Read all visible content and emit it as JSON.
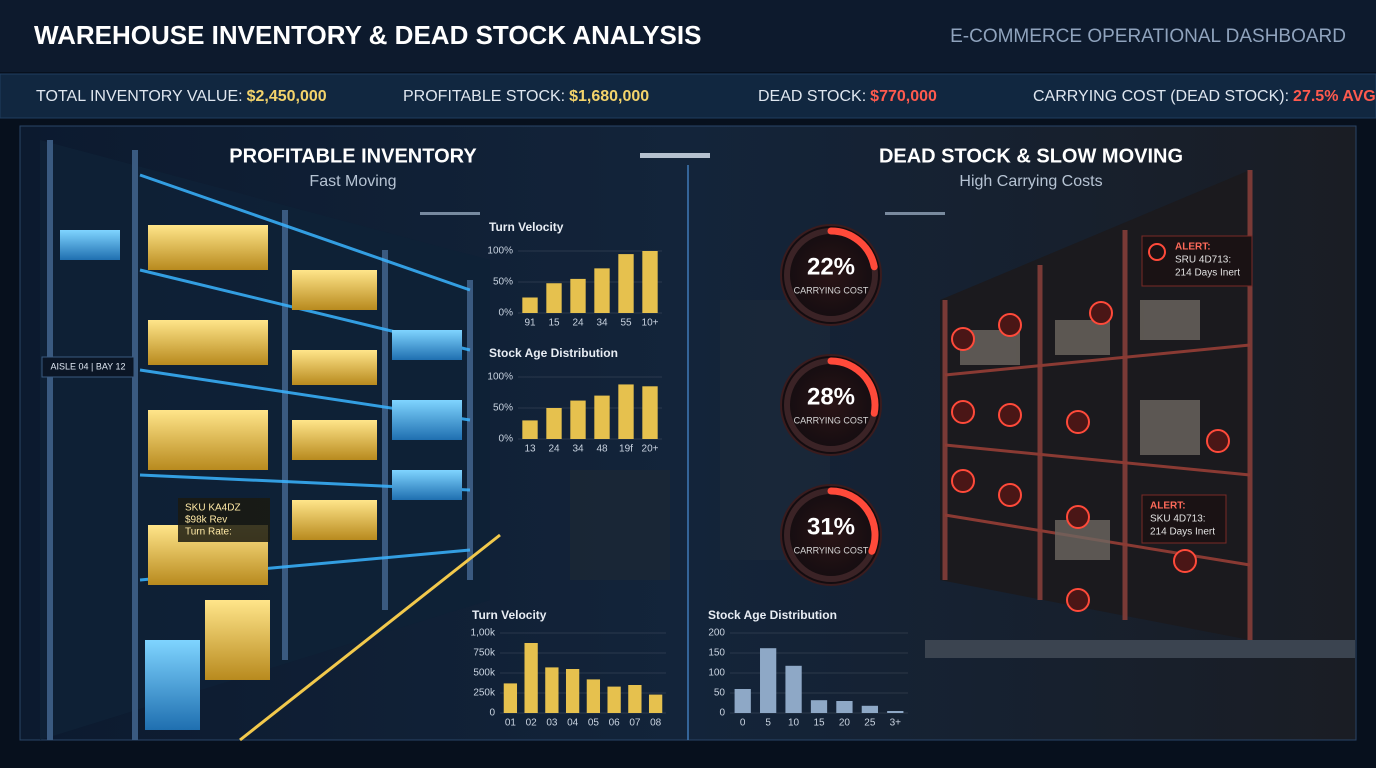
{
  "header": {
    "title": "WAREHOUSE INVENTORY & DEAD STOCK ANALYSIS",
    "subtitle": "E-COMMERCE OPERATIONAL DASHBOARD"
  },
  "kpis": [
    {
      "label": "TOTAL INVENTORY VALUE:",
      "value": "$2,450,000"
    },
    {
      "label": "PROFITABLE STOCK:",
      "value": "$1,680,000"
    },
    {
      "label": "DEAD STOCK:",
      "value": "$770,000"
    },
    {
      "label": "CARRYING COST (DEAD STOCK):",
      "value": "27.5% AVG"
    }
  ],
  "panels": [
    {
      "title": "PROFITABLE INVENTORY",
      "subtitle": "Fast Moving"
    },
    {
      "title": "DEAD STOCK & SLOW MOVING",
      "subtitle": "High Carrying Costs"
    }
  ],
  "shelf_labels": {
    "aisle": "AISLE 04 | BAY 12",
    "sku": "SKU KA4DZ",
    "revenue": "$98k Rev",
    "turn": "Turn Rate:"
  },
  "alerts": [
    {
      "title": "ALERT:",
      "sku": "SRU 4D713:",
      "detail": "214 Days Inert"
    },
    {
      "title": "ALERT:",
      "sku": "SKU 4D713:",
      "detail": "214 Days Inert"
    }
  ],
  "gauges": {
    "values": [
      22,
      28,
      31
    ],
    "value_labels": [
      "22%",
      "28%",
      "31%"
    ],
    "label": "CARRYING COST",
    "color": "#ff4a3a"
  },
  "chart_data": [
    {
      "type": "bar",
      "title": "Turn Velocity",
      "categories": [
        "91",
        "15",
        "24",
        "34",
        "55",
        "10+"
      ],
      "values": [
        25,
        48,
        55,
        72,
        95,
        100
      ],
      "color": "#e6c14e",
      "ylim": [
        0,
        100
      ],
      "yticks": [
        {
          "value": 0,
          "label": "0%"
        },
        {
          "value": 50,
          "label": "50%"
        },
        {
          "value": 100,
          "label": "100%"
        }
      ]
    },
    {
      "type": "bar",
      "title": "Stock Age Distribution",
      "categories": [
        "13",
        "24",
        "34",
        "48",
        "19f",
        "20+"
      ],
      "values": [
        30,
        50,
        62,
        70,
        88,
        85
      ],
      "color": "#e6c14e",
      "ylim": [
        0,
        100
      ],
      "yticks": [
        {
          "value": 0,
          "label": "0%"
        },
        {
          "value": 50,
          "label": "50%"
        },
        {
          "value": 100,
          "label": "100%"
        }
      ]
    },
    {
      "type": "bar",
      "title": "Turn Velocity",
      "categories": [
        "01",
        "02",
        "03",
        "04",
        "05",
        "06",
        "07",
        "08"
      ],
      "values": [
        370000,
        875000,
        570000,
        550000,
        420000,
        330000,
        350000,
        230000
      ],
      "color": "#e6c14e",
      "ylim": [
        0,
        1000000
      ],
      "yticks": [
        0,
        {
          "value": 250000,
          "label": "250k"
        },
        {
          "value": 500000,
          "label": "500k"
        },
        {
          "value": 750000,
          "label": "750k"
        },
        {
          "value": 1000000,
          "label": "1,00k"
        }
      ]
    },
    {
      "type": "bar",
      "title": "Stock Age Distribution",
      "categories": [
        "0",
        "5",
        "10",
        "15",
        "20",
        "25",
        "3+"
      ],
      "values": [
        60,
        162,
        118,
        32,
        30,
        18,
        5
      ],
      "color": "#8ea8c6",
      "ylim": [
        0,
        200
      ],
      "yticks": [
        0,
        50,
        100,
        150,
        200
      ]
    }
  ]
}
